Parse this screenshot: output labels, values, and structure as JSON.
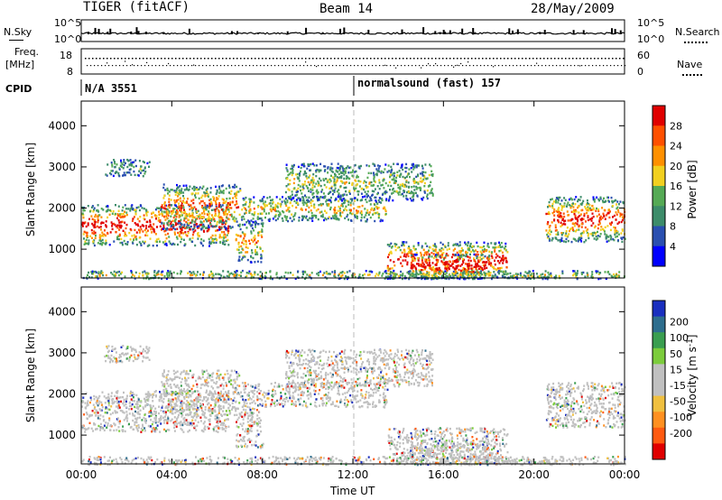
{
  "header": {
    "title": "TIGER (fitACF)",
    "beam": "Beam 14",
    "date": "28/May/2009"
  },
  "side_labels": {
    "nsky": "N.Sky",
    "freq_line1": "Freq.",
    "freq_line2": "[MHz]",
    "cpid": "CPID",
    "nsearch": "N.Search",
    "nave": "Nave"
  },
  "strip_ticks": {
    "nsky_top": "10^5",
    "nsky_bottom": "10^0",
    "freq_top": "18",
    "freq_bottom": "8",
    "right_top": "10^5",
    "right_bottom": "10^0",
    "nave_top": "60",
    "nave_bottom": "0"
  },
  "cpid": {
    "left": "N/A 3551",
    "right": "normalsound (fast) 157"
  },
  "colors": {
    "power_scale": [
      "#0000ff",
      "#2a4fb0",
      "#3d8c6a",
      "#55aa55",
      "#f2d020",
      "#ff9000",
      "#ff5000",
      "#e00000"
    ],
    "velocity_scale": [
      "#1a2fbf",
      "#2e6e8e",
      "#3a9e50",
      "#7ccc3c",
      "#c0c0c0",
      "#c0c0c0",
      "#f0c040",
      "#ff9020",
      "#ff5a10",
      "#e00000"
    ]
  },
  "chart_data": [
    {
      "type": "heatmap",
      "name": "power",
      "ylabel": "Slant Range [km]",
      "yticks": [
        "1000",
        "2000",
        "3000",
        "4000"
      ],
      "ylim": [
        300,
        4600
      ],
      "colorbar_label": "Power [dB]",
      "colorbar_ticks": [
        "4",
        "8",
        "12",
        "16",
        "20",
        "24",
        "28"
      ],
      "xticks": [
        "00:00",
        "04:00",
        "08:00",
        "12:00",
        "16:00",
        "20:00",
        "00:00"
      ]
    },
    {
      "type": "heatmap",
      "name": "velocity",
      "ylabel": "Slant Range [km]",
      "yticks": [
        "1000",
        "2000",
        "3000",
        "4000"
      ],
      "ylim": [
        300,
        4600
      ],
      "colorbar_label": "Velocity [m s",
      "colorbar_unit_sup": "-1",
      "colorbar_ticks": [
        "200",
        "100",
        "50",
        "15",
        "-15",
        "-50",
        "-100",
        "-200"
      ],
      "xticks": [
        "00:00",
        "04:00",
        "08:00",
        "12:00",
        "16:00",
        "20:00",
        "00:00"
      ],
      "xlabel": "Time UT"
    }
  ]
}
